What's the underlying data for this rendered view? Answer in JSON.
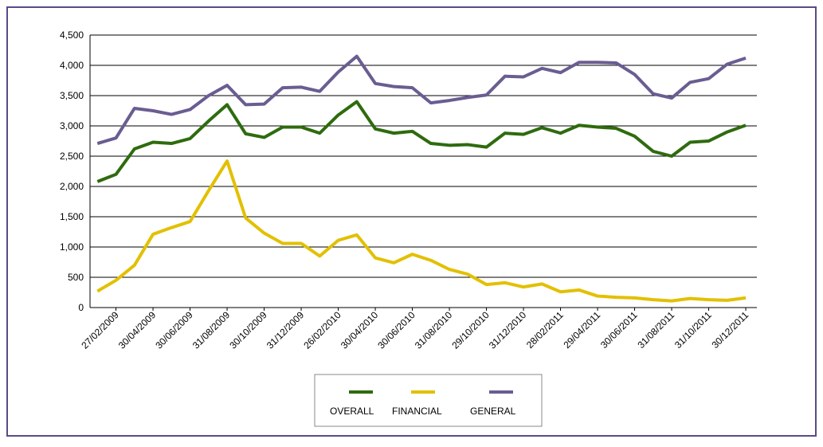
{
  "chart_data": {
    "type": "line",
    "categories": [
      null,
      "27/02/2009",
      null,
      "30/04/2009",
      null,
      "30/06/2009",
      null,
      "31/08/2009",
      null,
      "30/10/2009",
      null,
      "31/12/2009",
      null,
      "26/02/2010",
      null,
      "30/04/2010",
      null,
      "30/06/2010",
      null,
      "31/08/2010",
      null,
      "29/10/2010",
      null,
      "31/12/2010",
      null,
      "28/02/2011",
      null,
      "29/04/2011",
      null,
      "30/06/2011",
      null,
      "31/08/2011",
      null,
      "31/10/2011",
      null,
      "30/12/2011"
    ],
    "series": [
      {
        "name": "OVERALL",
        "color": "#2e6b0e",
        "values": [
          2080,
          2200,
          2620,
          2730,
          2710,
          2790,
          3080,
          3350,
          2870,
          2810,
          2980,
          2980,
          2880,
          3180,
          3400,
          2950,
          2880,
          2910,
          2710,
          2680,
          2690,
          2650,
          2880,
          2860,
          2970,
          2880,
          3010,
          2980,
          2960,
          2830,
          2580,
          2500,
          2730,
          2750,
          2900,
          3010
        ]
      },
      {
        "name": "FINANCIAL",
        "color": "#e2c000",
        "values": [
          270,
          450,
          700,
          1210,
          1320,
          1420,
          1930,
          2420,
          1480,
          1230,
          1060,
          1060,
          850,
          1110,
          1200,
          820,
          740,
          880,
          780,
          630,
          550,
          380,
          410,
          340,
          390,
          260,
          290,
          190,
          170,
          160,
          130,
          110,
          150,
          130,
          120,
          160
        ]
      },
      {
        "name": "GENERAL",
        "color": "#6a5d92",
        "values": [
          2710,
          2800,
          3290,
          3250,
          3190,
          3270,
          3500,
          3670,
          3350,
          3360,
          3630,
          3640,
          3570,
          3890,
          4150,
          3700,
          3650,
          3630,
          3380,
          3420,
          3470,
          3510,
          3820,
          3810,
          3950,
          3880,
          4050,
          4050,
          4040,
          3850,
          3530,
          3460,
          3720,
          3780,
          4020,
          4120
        ]
      }
    ],
    "ylim": [
      0,
      4500
    ],
    "yticks": [
      0,
      500,
      {
        "value": 1000,
        "label": "1,000"
      },
      {
        "value": 1500,
        "label": "1,500"
      },
      {
        "value": 2000,
        "label": "2,000"
      },
      {
        "value": 2500,
        "label": "2,500"
      },
      {
        "value": 3000,
        "label": "3,000"
      },
      {
        "value": 3500,
        "label": "3,500"
      },
      {
        "value": 4000,
        "label": "4,000"
      },
      {
        "value": 4500,
        "label": "4,500"
      }
    ],
    "grid": true,
    "legend": "bottom"
  }
}
